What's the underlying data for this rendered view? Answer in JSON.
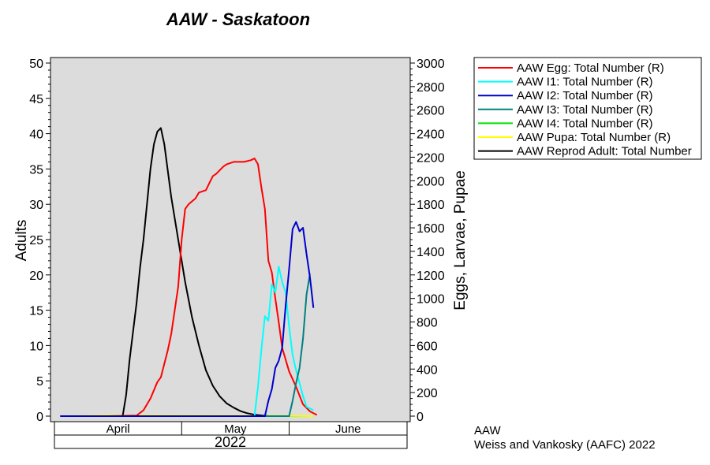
{
  "colors": {
    "plot_bg": "#dcdcdc",
    "egg": "#ff0000",
    "i1": "#00ffff",
    "i2": "#0000cc",
    "i3": "#008080",
    "i4": "#00e000",
    "pupa": "#ffff00",
    "adult": "#000000"
  },
  "chart_data": {
    "type": "line",
    "title": "AAW - Saskatoon",
    "ylabel_left": "Adults",
    "ylabel_right": "Eggs, Larvae, Pupae",
    "left_axis": {
      "min": 0,
      "max": 50,
      "ticks": [
        "0",
        "5",
        "10",
        "15",
        "20",
        "25",
        "30",
        "35",
        "40",
        "45",
        "50"
      ]
    },
    "right_axis": {
      "min": 0,
      "max": 3000,
      "ticks": [
        "0",
        "200",
        "400",
        "600",
        "800",
        "1000",
        "1200",
        "1400",
        "1600",
        "1800",
        "2000",
        "2200",
        "2400",
        "2600",
        "2800",
        "3000"
      ]
    },
    "x_axis": {
      "start": "2022-03-26",
      "end": "2022-07-05",
      "month_boundaries": [
        "2022-05-01",
        "2022-06-01"
      ],
      "months": [
        "April",
        "May",
        "June"
      ],
      "year": "2022"
    },
    "grid": false,
    "legend_position": "right",
    "series": [
      {
        "name": "AAW Egg: Total Number (R)",
        "color_key": "egg",
        "axis": "right",
        "points": [
          [
            "2022-03-27",
            0
          ],
          [
            "2022-04-10",
            0
          ],
          [
            "2022-04-18",
            5
          ],
          [
            "2022-04-20",
            50
          ],
          [
            "2022-04-22",
            150
          ],
          [
            "2022-04-24",
            290
          ],
          [
            "2022-04-25",
            330
          ],
          [
            "2022-04-27",
            560
          ],
          [
            "2022-04-28",
            700
          ],
          [
            "2022-04-30",
            1100
          ],
          [
            "2022-05-01",
            1500
          ],
          [
            "2022-05-02",
            1760
          ],
          [
            "2022-05-03",
            1800
          ],
          [
            "2022-05-05",
            1850
          ],
          [
            "2022-05-06",
            1900
          ],
          [
            "2022-05-08",
            1920
          ],
          [
            "2022-05-09",
            1980
          ],
          [
            "2022-05-10",
            2040
          ],
          [
            "2022-05-11",
            2060
          ],
          [
            "2022-05-13",
            2120
          ],
          [
            "2022-05-14",
            2140
          ],
          [
            "2022-05-16",
            2160
          ],
          [
            "2022-05-19",
            2160
          ],
          [
            "2022-05-21",
            2175
          ],
          [
            "2022-05-22",
            2190
          ],
          [
            "2022-05-23",
            2140
          ],
          [
            "2022-05-24",
            1940
          ],
          [
            "2022-05-25",
            1760
          ],
          [
            "2022-05-26",
            1320
          ],
          [
            "2022-05-27",
            1220
          ],
          [
            "2022-05-28",
            1000
          ],
          [
            "2022-05-29",
            800
          ],
          [
            "2022-05-30",
            580
          ],
          [
            "2022-06-01",
            380
          ],
          [
            "2022-06-03",
            250
          ],
          [
            "2022-06-05",
            100
          ],
          [
            "2022-06-07",
            40
          ],
          [
            "2022-06-09",
            10
          ]
        ]
      },
      {
        "name": "AAW I1: Total Number (R)",
        "color_key": "i1",
        "axis": "right",
        "points": [
          [
            "2022-03-27",
            0
          ],
          [
            "2022-05-22",
            0
          ],
          [
            "2022-05-23",
            250
          ],
          [
            "2022-05-24",
            570
          ],
          [
            "2022-05-25",
            850
          ],
          [
            "2022-05-26",
            810
          ],
          [
            "2022-05-27",
            1120
          ],
          [
            "2022-05-28",
            1050
          ],
          [
            "2022-05-29",
            1270
          ],
          [
            "2022-05-30",
            1140
          ],
          [
            "2022-05-31",
            1050
          ],
          [
            "2022-06-01",
            760
          ],
          [
            "2022-06-02",
            520
          ],
          [
            "2022-06-03",
            390
          ],
          [
            "2022-06-04",
            280
          ],
          [
            "2022-06-05",
            170
          ],
          [
            "2022-06-06",
            80
          ],
          [
            "2022-06-08",
            50
          ]
        ]
      },
      {
        "name": "AAW I2: Total Number (R)",
        "color_key": "i2",
        "axis": "right",
        "points": [
          [
            "2022-03-27",
            0
          ],
          [
            "2022-05-25",
            0
          ],
          [
            "2022-05-26",
            130
          ],
          [
            "2022-05-27",
            230
          ],
          [
            "2022-05-28",
            410
          ],
          [
            "2022-05-29",
            470
          ],
          [
            "2022-05-30",
            580
          ],
          [
            "2022-05-31",
            940
          ],
          [
            "2022-06-01",
            1250
          ],
          [
            "2022-06-02",
            1590
          ],
          [
            "2022-06-03",
            1650
          ],
          [
            "2022-06-04",
            1570
          ],
          [
            "2022-06-05",
            1600
          ],
          [
            "2022-06-06",
            1380
          ],
          [
            "2022-06-07",
            1180
          ],
          [
            "2022-06-08",
            920
          ]
        ]
      },
      {
        "name": "AAW I3: Total Number (R)",
        "color_key": "i3",
        "axis": "right",
        "points": [
          [
            "2022-03-27",
            0
          ],
          [
            "2022-06-01",
            0
          ],
          [
            "2022-06-02",
            130
          ],
          [
            "2022-06-03",
            280
          ],
          [
            "2022-06-04",
            410
          ],
          [
            "2022-06-05",
            660
          ],
          [
            "2022-06-06",
            1030
          ],
          [
            "2022-06-07",
            1210
          ]
        ]
      },
      {
        "name": "AAW I4: Total Number (R)",
        "color_key": "i4",
        "axis": "right",
        "points": [
          [
            "2022-03-27",
            0
          ],
          [
            "2022-06-08",
            0
          ]
        ]
      },
      {
        "name": "AAW Pupa: Total Number (R)",
        "color_key": "pupa",
        "axis": "right",
        "points": [
          [
            "2022-03-27",
            0
          ],
          [
            "2022-04-10",
            8
          ],
          [
            "2022-05-20",
            5
          ],
          [
            "2022-06-08",
            0
          ]
        ]
      },
      {
        "name": "AAW Reprod Adult: Total Number",
        "color_key": "adult",
        "axis": "left",
        "points": [
          [
            "2022-03-27",
            0
          ],
          [
            "2022-04-14",
            0
          ],
          [
            "2022-04-15",
            3
          ],
          [
            "2022-04-16",
            8
          ],
          [
            "2022-04-17",
            12
          ],
          [
            "2022-04-18",
            16
          ],
          [
            "2022-04-19",
            21
          ],
          [
            "2022-04-20",
            25
          ],
          [
            "2022-04-21",
            30
          ],
          [
            "2022-04-22",
            35
          ],
          [
            "2022-04-23",
            38.5
          ],
          [
            "2022-04-24",
            40.3
          ],
          [
            "2022-04-25",
            40.8
          ],
          [
            "2022-04-26",
            38.5
          ],
          [
            "2022-04-28",
            31
          ],
          [
            "2022-04-30",
            25
          ],
          [
            "2022-05-02",
            19
          ],
          [
            "2022-05-04",
            14
          ],
          [
            "2022-05-06",
            10
          ],
          [
            "2022-05-08",
            6.5
          ],
          [
            "2022-05-10",
            4.3
          ],
          [
            "2022-05-12",
            2.8
          ],
          [
            "2022-05-14",
            1.8
          ],
          [
            "2022-05-16",
            1.2
          ],
          [
            "2022-05-18",
            0.7
          ],
          [
            "2022-05-20",
            0.4
          ],
          [
            "2022-05-22",
            0.2
          ],
          [
            "2022-05-26",
            0
          ]
        ]
      }
    ]
  },
  "footer": {
    "line1": "AAW",
    "line2": "Weiss and Vankosky (AAFC) 2022"
  }
}
